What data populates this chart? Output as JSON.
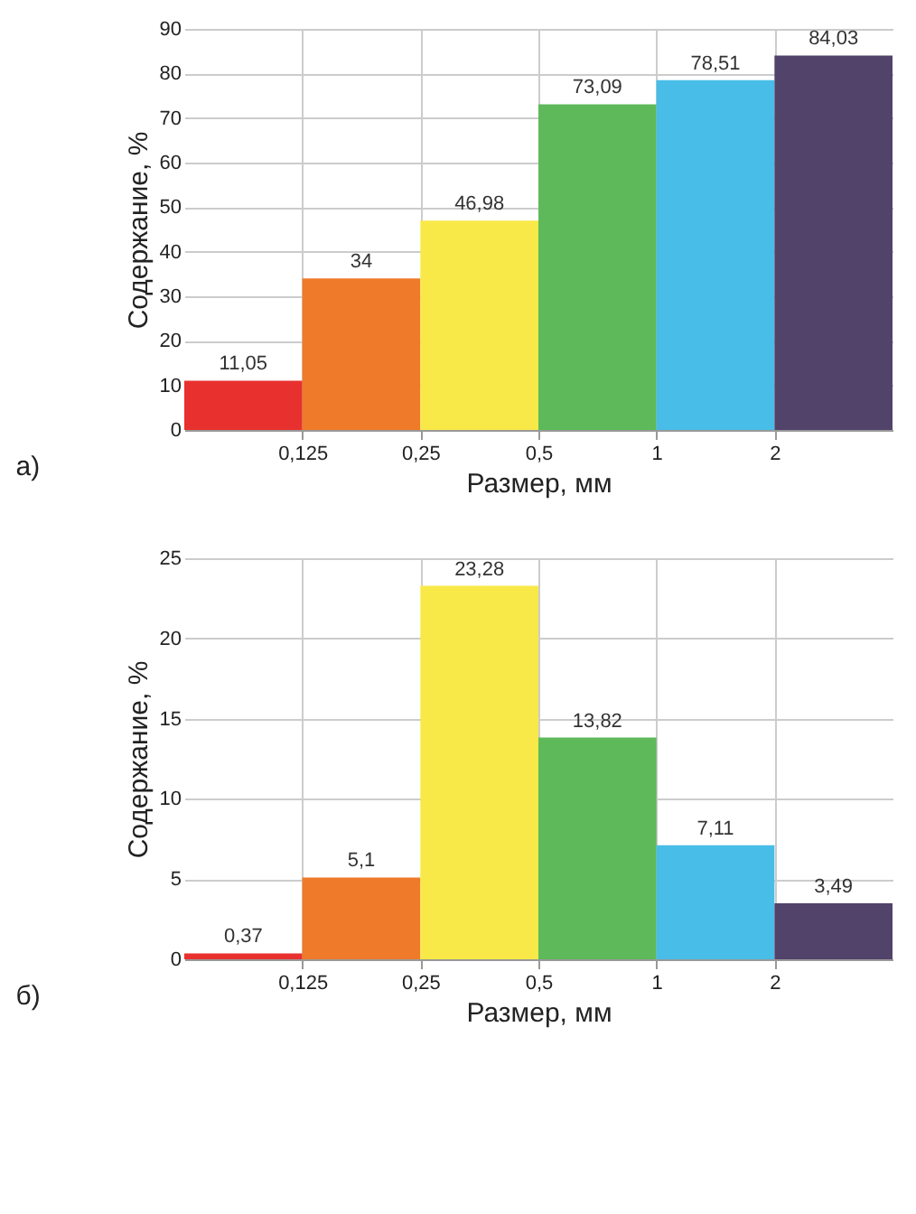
{
  "chart_data": [
    {
      "type": "histogram",
      "xlabel": "Размер, мм",
      "ylabel": "Содержание, %",
      "annotations": [
        "а)"
      ],
      "log": "x",
      "bins": [
        0.0625,
        0.125,
        0.25,
        0.5,
        1,
        2,
        4
      ],
      "values": [
        11.05,
        34,
        46.98,
        73.09,
        78.51,
        84.03
      ],
      "value_labels": [
        "11,05",
        "34",
        "46,98",
        "73,09",
        "78,51",
        "84,03"
      ],
      "colors": [
        "#e8312f",
        "#ef7a29",
        "#f8e948",
        "#5eb95a",
        "#48bde8",
        "#52436a"
      ],
      "xlim": [
        0.0625,
        4
      ],
      "xticks": [
        {
          "value": 0.125,
          "label": "0,125"
        },
        {
          "value": 0.25,
          "label": "0,25"
        },
        {
          "value": 0.5,
          "label": "0,5"
        },
        {
          "value": 1,
          "label": "1"
        },
        {
          "value": 2,
          "label": "2"
        }
      ],
      "ylim": [
        0,
        90
      ],
      "yticks": [
        0,
        10,
        20,
        30,
        40,
        50,
        60,
        70,
        80,
        90
      ],
      "grid": true
    },
    {
      "type": "histogram",
      "xlabel": "Размер, мм",
      "ylabel": "Содержание, %",
      "annotations": [
        "б)"
      ],
      "log": "x",
      "bins": [
        0.0625,
        0.125,
        0.25,
        0.5,
        1,
        2,
        4
      ],
      "values": [
        0.37,
        5.1,
        23.28,
        13.82,
        7.11,
        3.49
      ],
      "value_labels": [
        "0,37",
        "5,1",
        "23,28",
        "13,82",
        "7,11",
        "3,49"
      ],
      "colors": [
        "#e8312f",
        "#ef7a29",
        "#f8e948",
        "#5eb95a",
        "#48bde8",
        "#52436a"
      ],
      "xlim": [
        0.0625,
        4
      ],
      "xticks": [
        {
          "value": 0.125,
          "label": "0,125"
        },
        {
          "value": 0.25,
          "label": "0,25"
        },
        {
          "value": 0.5,
          "label": "0,5"
        },
        {
          "value": 1,
          "label": "1"
        },
        {
          "value": 2,
          "label": "2"
        }
      ],
      "ylim": [
        0,
        25
      ],
      "yticks": [
        0,
        5,
        10,
        15,
        20,
        25
      ],
      "grid": true
    }
  ]
}
